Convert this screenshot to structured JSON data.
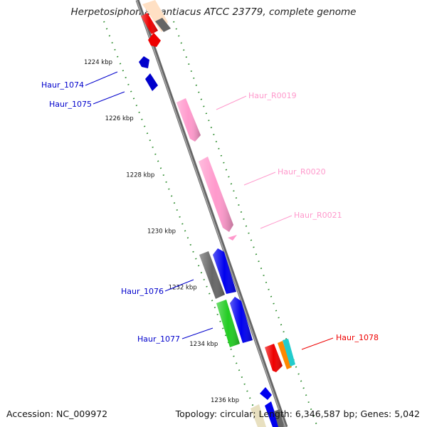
{
  "title": "Herpetosiphon aurantiacus ATCC 23779, complete genome",
  "footer": {
    "accession": "Accession: NC_009972",
    "topology": "Topology: circular; Length: 6,346,587 bp; Genes: 5,042"
  },
  "scale_unit": "kbp",
  "ticks_kbp": [
    1224,
    1226,
    1228,
    1230,
    1232,
    1234,
    1236
  ],
  "genes": [
    {
      "id": "Haur_1074",
      "color": "#0000cc",
      "start_kbp": 1224.4,
      "end_kbp": 1224.7,
      "strand": "-",
      "label_side": "left"
    },
    {
      "id": "Haur_1075",
      "color": "#0000cc",
      "start_kbp": 1224.9,
      "end_kbp": 1225.4,
      "strand": "-",
      "label_side": "left"
    },
    {
      "id": "Haur_R0019",
      "color": "#ff99cc",
      "start_kbp": 1226.0,
      "end_kbp": 1227.5,
      "strand": "+",
      "label_side": "right"
    },
    {
      "id": "Haur_R0020",
      "color": "#ff99cc",
      "start_kbp": 1228.5,
      "end_kbp": 1231.1,
      "strand": "+",
      "label_side": "right"
    },
    {
      "id": "Haur_R0021",
      "color": "#ff99cc",
      "start_kbp": 1231.2,
      "end_kbp": 1231.35,
      "strand": "+",
      "label_side": "right"
    },
    {
      "id": "Haur_1076",
      "color": "#0000ee",
      "start_kbp": 1231.4,
      "end_kbp": 1233.6,
      "strand": "-",
      "label_side": "left"
    },
    {
      "id": "Haur_1077",
      "color": "#0000ee",
      "start_kbp": 1233.8,
      "end_kbp": 1236.2,
      "strand": "-",
      "label_side": "left"
    },
    {
      "id": "Haur_1078",
      "color": "#ff0000",
      "start_kbp": 1236.7,
      "end_kbp": 1237.5,
      "strand": "+",
      "label_side": "right"
    }
  ]
}
